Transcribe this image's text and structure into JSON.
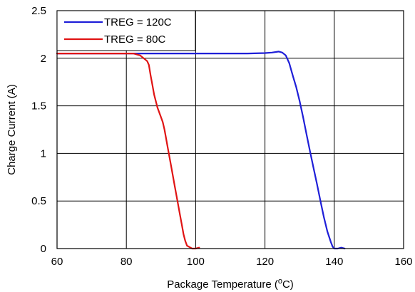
{
  "chart_data": {
    "type": "line",
    "xlabel": "Package Temperature (",
    "xlabel_sup": "o",
    "xlabel_tail": "C)",
    "ylabel": "Charge Current (A)",
    "xlim": [
      60,
      160
    ],
    "ylim": [
      0,
      2.5
    ],
    "x_ticks": [
      "60",
      "80",
      "100",
      "120",
      "140",
      "160"
    ],
    "y_ticks": [
      "0",
      "0.5",
      "1",
      "1.5",
      "2",
      "2.5"
    ],
    "grid": true,
    "legend_position": "top-left",
    "series": [
      {
        "name": "TREG = 120C",
        "color": "#1f1fd8",
        "x": [
          60,
          80,
          100,
          110,
          115,
          120,
          122,
          124,
          125,
          126,
          127,
          128,
          129,
          130,
          131,
          132,
          133,
          134,
          135,
          136,
          137,
          138,
          139,
          139.5,
          140,
          141,
          142,
          143
        ],
        "y": [
          2.05,
          2.05,
          2.05,
          2.05,
          2.05,
          2.055,
          2.06,
          2.07,
          2.06,
          2.03,
          1.95,
          1.82,
          1.7,
          1.55,
          1.38,
          1.2,
          1.02,
          0.85,
          0.68,
          0.5,
          0.33,
          0.18,
          0.07,
          0.02,
          0.0,
          0.0,
          0.01,
          0.0
        ]
      },
      {
        "name": "TREG = 80C",
        "color": "#e01414",
        "x": [
          60,
          70,
          80,
          82,
          84,
          85,
          86,
          86.5,
          87,
          87.5,
          88,
          89,
          90,
          90.5,
          91,
          92,
          93,
          94,
          95,
          95.5,
          96,
          96.5,
          97,
          97.5,
          98,
          98.5,
          99,
          100,
          101
        ],
        "y": [
          2.05,
          2.05,
          2.05,
          2.05,
          2.03,
          2.0,
          1.97,
          1.93,
          1.82,
          1.72,
          1.62,
          1.48,
          1.38,
          1.33,
          1.25,
          1.05,
          0.85,
          0.65,
          0.45,
          0.35,
          0.25,
          0.15,
          0.08,
          0.03,
          0.02,
          0.01,
          0.0,
          0.0,
          0.01
        ]
      }
    ]
  }
}
